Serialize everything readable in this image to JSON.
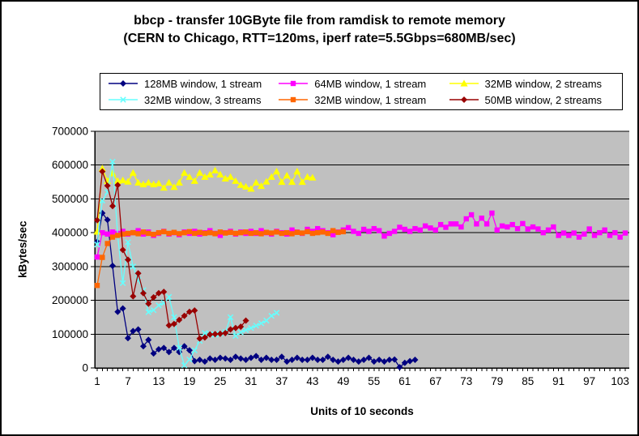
{
  "title": {
    "line1": "bbcp - transfer 10GByte file from ramdisk to remote memory",
    "line2": "(CERN to Chicago,  RTT=120ms, iperf rate=5.5Gbps=680MB/sec)"
  },
  "chart_data": {
    "type": "line",
    "title": "bbcp - transfer 10GByte file from ramdisk to remote memory (CERN to Chicago, RTT=120ms, iperf rate=5.5Gbps=680MB/sec)",
    "xlabel": "Units of 10 seconds",
    "ylabel": "kBytes/sec",
    "xlim": [
      1,
      104
    ],
    "ylim": [
      0,
      700000
    ],
    "y_ticks": [
      0,
      100000,
      200000,
      300000,
      400000,
      500000,
      600000,
      700000
    ],
    "x_tick_labels": [
      1,
      7,
      13,
      19,
      25,
      31,
      37,
      43,
      49,
      55,
      61,
      67,
      73,
      79,
      85,
      91,
      97,
      103
    ],
    "grid": "horizontal-black-lines",
    "legend_position": "top",
    "plot_background": "#c0c0c0",
    "series": [
      {
        "name": "128MB window, 1 stream",
        "color": "#000080",
        "marker": "diamond",
        "x_start": 1,
        "x_step": 1,
        "values": [
          373000,
          458000,
          438000,
          302000,
          166000,
          176000,
          88000,
          109000,
          114000,
          64000,
          83000,
          43000,
          55000,
          59000,
          47000,
          59000,
          47000,
          64000,
          52000,
          20000,
          24000,
          19000,
          28000,
          24000,
          30000,
          28000,
          24000,
          33000,
          28000,
          24000,
          30000,
          35000,
          24000,
          30000,
          24000,
          24000,
          33000,
          19000,
          24000,
          30000,
          24000,
          24000,
          30000,
          24000,
          24000,
          33000,
          24000,
          19000,
          24000,
          30000,
          24000,
          19000,
          24000,
          30000,
          19000,
          24000,
          19000,
          24000,
          25000,
          2000,
          15000,
          20000,
          24000
        ]
      },
      {
        "name": "64MB window, 1 stream",
        "color": "#ff00ff",
        "marker": "square",
        "x_start": 1,
        "x_step": 1,
        "values": [
          328000,
          400000,
          396000,
          402000,
          398000,
          404000,
          396000,
          400000,
          406000,
          396000,
          402000,
          392000,
          398000,
          404000,
          396000,
          400000,
          394000,
          402000,
          398000,
          404000,
          396000,
          400000,
          406000,
          398000,
          392000,
          400000,
          404000,
          396000,
          402000,
          398000,
          404000,
          398000,
          406000,
          400000,
          396000,
          404000,
          400000,
          396000,
          408000,
          402000,
          398000,
          410000,
          404000,
          412000,
          406000,
          400000,
          394000,
          402000,
          408000,
          415000,
          404000,
          398000,
          410000,
          404000,
          412000,
          406000,
          390000,
          398000,
          404000,
          416000,
          410000,
          404000,
          412000,
          408000,
          420000,
          414000,
          408000,
          424000,
          416000,
          426000,
          426000,
          417000,
          441000,
          453000,
          426000,
          443000,
          426000,
          458000,
          408000,
          420000,
          417000,
          424000,
          412000,
          427000,
          411000,
          417000,
          411000,
          400000,
          408000,
          417000,
          392000,
          399000,
          392000,
          399000,
          387000,
          396000,
          411000,
          392000,
          400000,
          408000,
          392000,
          400000,
          387000,
          399000
        ]
      },
      {
        "name": "32MB window, 2 streams",
        "color": "#ffff00",
        "marker": "triangle",
        "x_start": 1,
        "x_step": 1,
        "values": [
          403000,
          590000,
          553000,
          576000,
          553000,
          555000,
          551000,
          577000,
          548000,
          543000,
          548000,
          543000,
          546000,
          533000,
          548000,
          535000,
          548000,
          577000,
          565000,
          553000,
          577000,
          565000,
          572000,
          584000,
          572000,
          560000,
          565000,
          553000,
          541000,
          536000,
          530000,
          548000,
          538000,
          551000,
          565000,
          581000,
          550000,
          569000,
          550000,
          581000,
          550000,
          565000,
          563000
        ]
      },
      {
        "name": "32MB window, 3 streams",
        "color": "#66ffff",
        "marker": "x",
        "x_start": 1,
        "x_step": 1,
        "values": [
          365000,
          495000,
          520000,
          610000,
          391000,
          251000,
          372000,
          300000,
          260000,
          230000,
          165000,
          171000,
          185000,
          192000,
          210000,
          150000,
          60000,
          8000,
          25000,
          52000,
          80000,
          103000,
          100000,
          98000,
          101000,
          106000,
          150000,
          95000,
          105000,
          112000,
          118000,
          125000,
          132000,
          140000,
          154000,
          163000
        ]
      },
      {
        "name": "32MB window, 1 stream",
        "color": "#ff6600",
        "marker": "square",
        "x_start": 1,
        "x_step": 1,
        "values": [
          244000,
          327000,
          368000,
          387000,
          392000,
          396000,
          398000,
          400000,
          397000,
          402000,
          398000,
          395000,
          400000,
          403000,
          398000,
          401000,
          397000,
          400000,
          403000,
          398000,
          401000,
          398000,
          400000,
          397000,
          402000,
          399000,
          401000,
          398000,
          400000,
          402000,
          398000,
          400000,
          397000,
          401000,
          399000,
          402000,
          398000,
          400000,
          397000,
          401000,
          399000,
          403000,
          398000,
          400000,
          402000,
          398000,
          406000,
          401000,
          403000
        ]
      },
      {
        "name": "50MB window, 2 streams",
        "color": "#990000",
        "marker": "diamond",
        "x_start": 1,
        "x_step": 1,
        "values": [
          437000,
          581000,
          539000,
          479000,
          541000,
          349000,
          320000,
          212000,
          280000,
          221000,
          190000,
          209000,
          221000,
          225000,
          126000,
          130000,
          142000,
          154000,
          166000,
          170000,
          87000,
          90000,
          99000,
          100000,
          101000,
          103000,
          114000,
          118000,
          122000,
          140000
        ]
      }
    ]
  }
}
